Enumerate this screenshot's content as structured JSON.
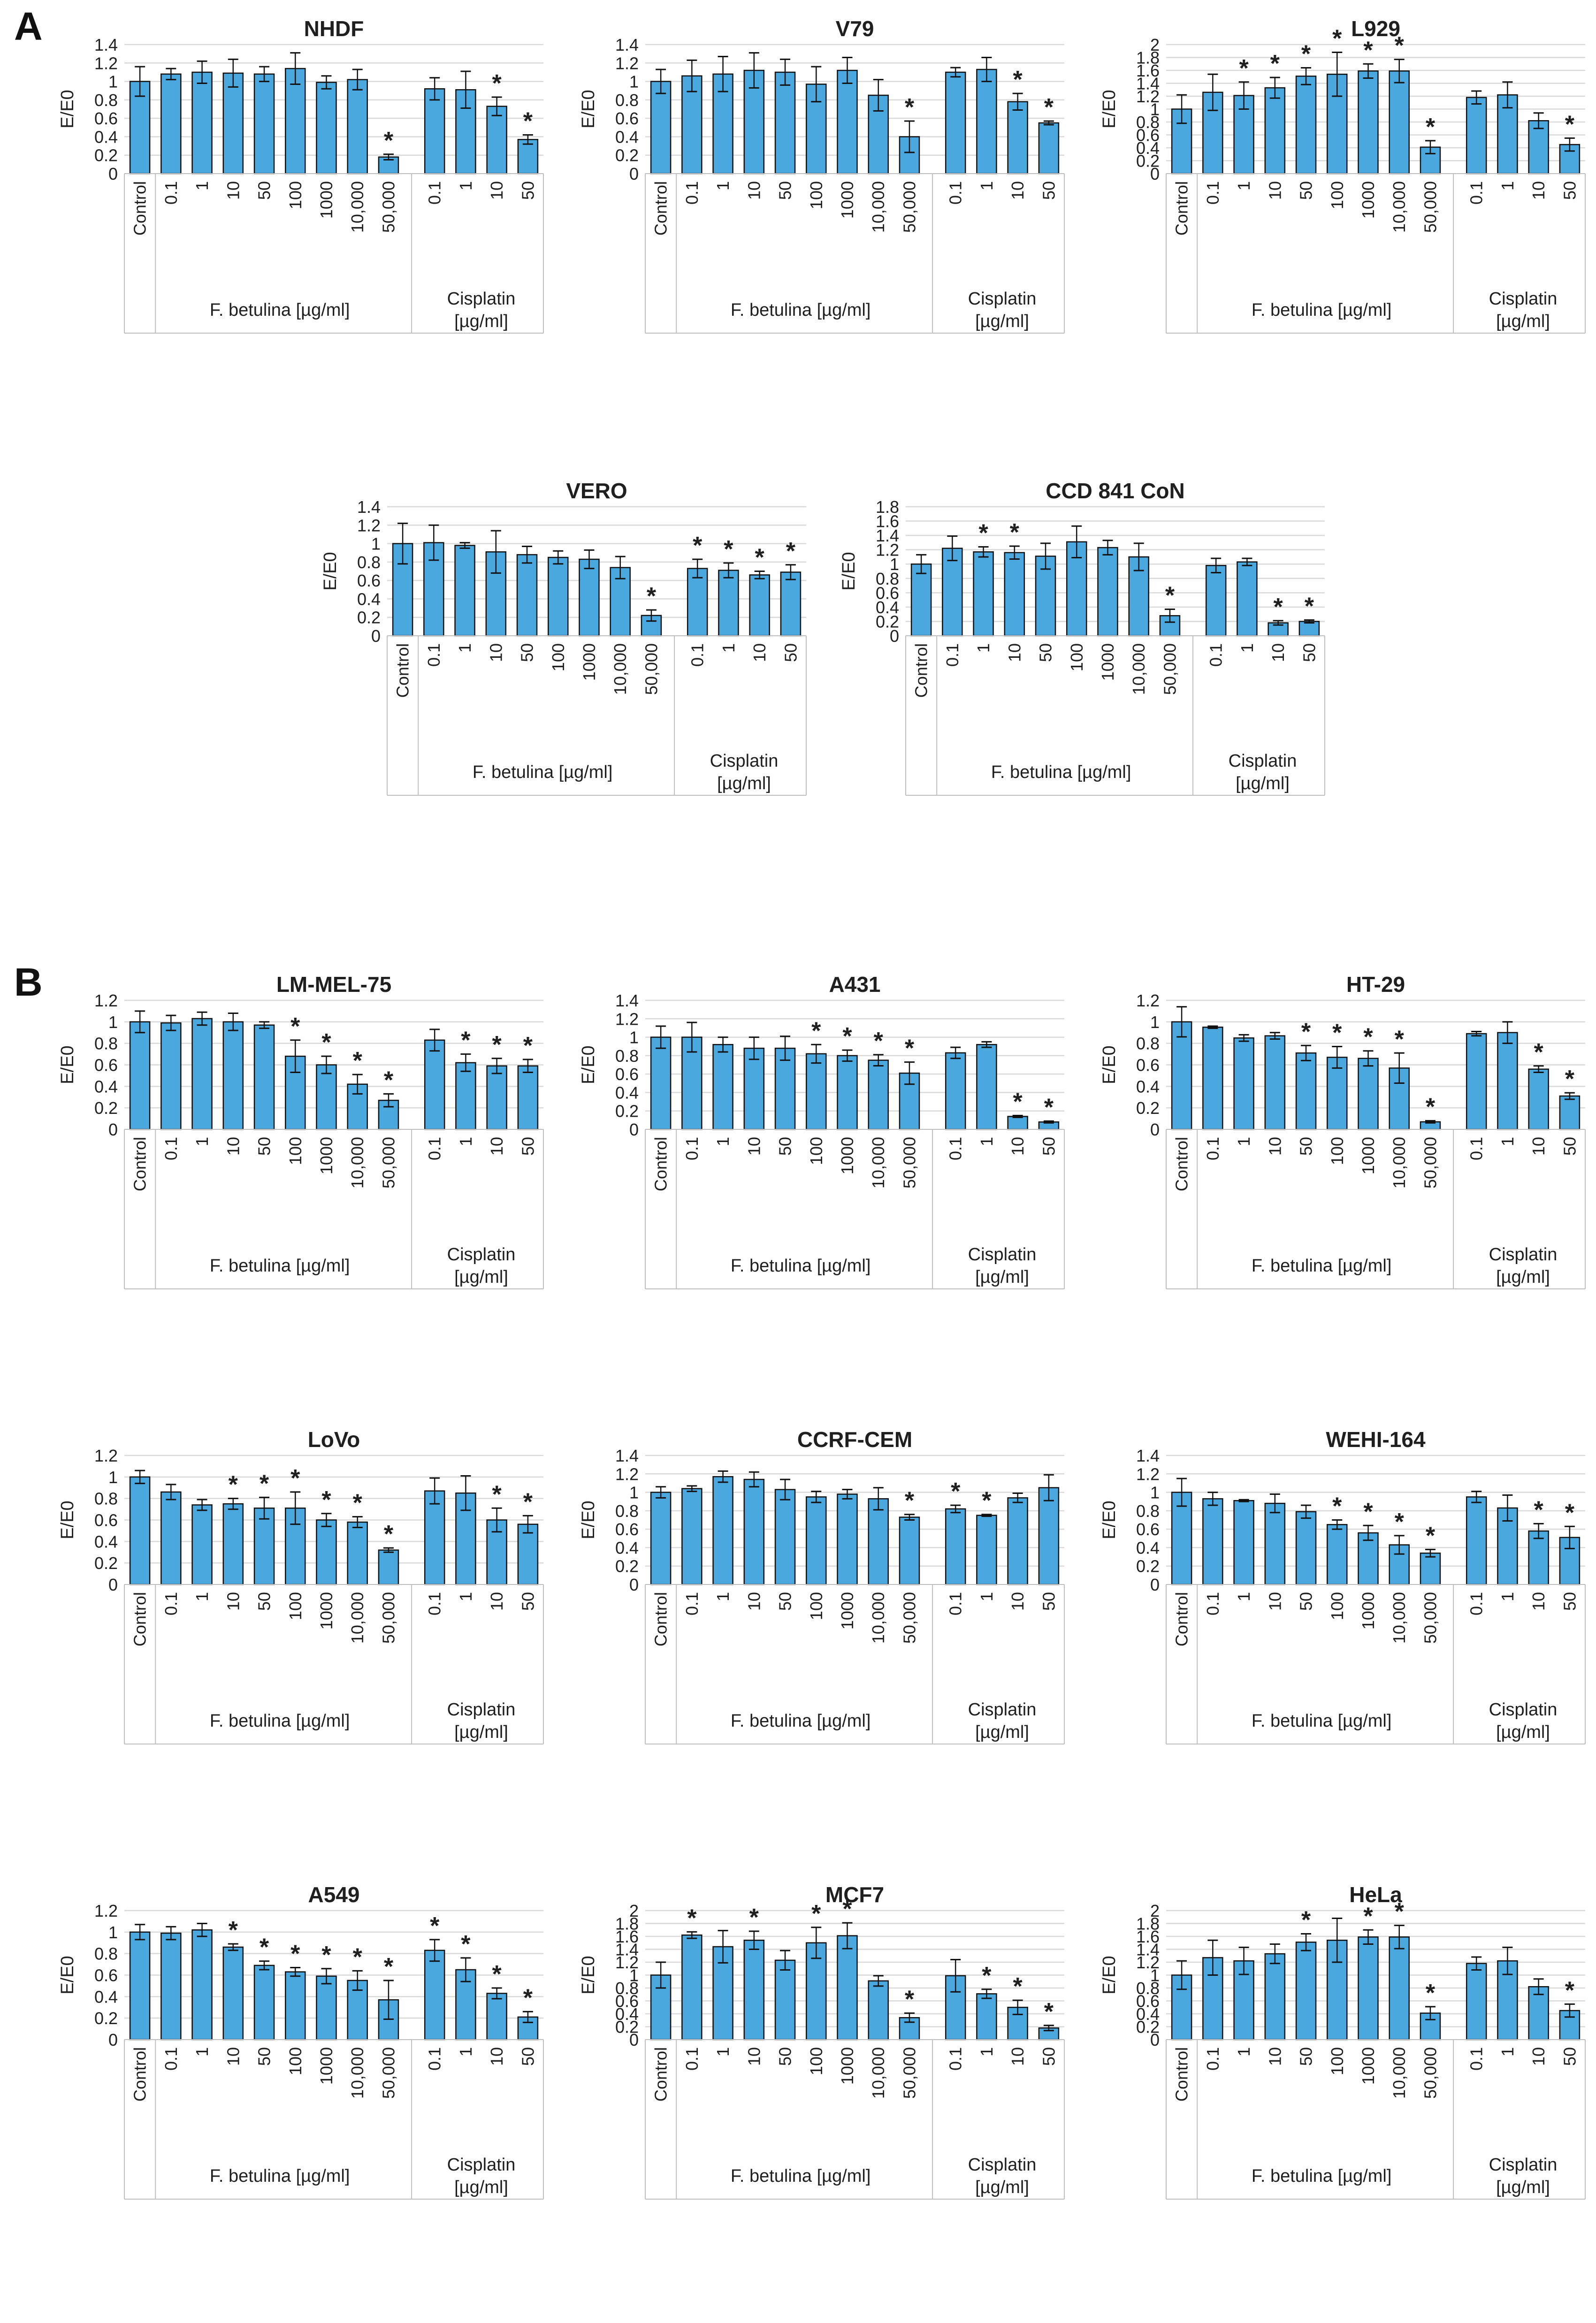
{
  "figure": {
    "panel_a": "A",
    "panel_b": "B",
    "ylabel": "E/E0",
    "categories": [
      "Control",
      "0.1",
      "1",
      "10",
      "50",
      "100",
      "1000",
      "10,000",
      "50,000",
      "0.1",
      "1",
      "10",
      "50"
    ],
    "group1_label": "F. betulina [µg/ml]",
    "group2_lines": [
      "Cisplatin",
      "[µg/ml]"
    ],
    "significance_marker": "*",
    "colors": {
      "bar_fill": "#4BA8DF",
      "bar_stroke": "#111111",
      "grid": "#D9D9D9",
      "box": "#BFBFBF",
      "text": "#1F1F1F"
    }
  },
  "chart_data": [
    {
      "type": "bar",
      "panel": "A",
      "title": "NHDF",
      "ylim": [
        0,
        1.4
      ],
      "ystep": 0.2,
      "values": [
        1.0,
        1.08,
        1.1,
        1.09,
        1.08,
        1.14,
        0.99,
        1.02,
        0.18,
        0.92,
        0.91,
        0.73,
        0.37
      ],
      "errors": [
        0.16,
        0.06,
        0.12,
        0.15,
        0.08,
        0.17,
        0.07,
        0.11,
        0.03,
        0.12,
        0.2,
        0.1,
        0.05
      ],
      "sig": [
        0,
        0,
        0,
        0,
        0,
        0,
        0,
        0,
        1,
        0,
        0,
        1,
        1
      ]
    },
    {
      "type": "bar",
      "panel": "A",
      "title": "V79",
      "ylim": [
        0,
        1.4
      ],
      "ystep": 0.2,
      "values": [
        1.0,
        1.06,
        1.08,
        1.12,
        1.1,
        0.97,
        1.12,
        0.85,
        0.4,
        1.1,
        1.13,
        0.78,
        0.55
      ],
      "errors": [
        0.13,
        0.17,
        0.19,
        0.19,
        0.14,
        0.19,
        0.14,
        0.17,
        0.17,
        0.05,
        0.13,
        0.09,
        0.02
      ],
      "sig": [
        0,
        0,
        0,
        0,
        0,
        0,
        0,
        0,
        1,
        0,
        0,
        1,
        1
      ]
    },
    {
      "type": "bar",
      "panel": "A",
      "title": "L929",
      "ylim": [
        0,
        2
      ],
      "ystep": 0.2,
      "values": [
        1.0,
        1.26,
        1.21,
        1.33,
        1.51,
        1.54,
        1.59,
        1.59,
        0.41,
        1.18,
        1.22,
        0.82,
        0.45
      ],
      "errors": [
        0.22,
        0.28,
        0.21,
        0.16,
        0.13,
        0.34,
        0.11,
        0.18,
        0.1,
        0.1,
        0.2,
        0.12,
        0.1
      ],
      "sig": [
        0,
        0,
        1,
        1,
        1,
        1,
        1,
        1,
        1,
        0,
        0,
        0,
        1
      ]
    },
    {
      "type": "bar",
      "panel": "A",
      "title": "VERO",
      "ylim": [
        0,
        1.4
      ],
      "ystep": 0.2,
      "values": [
        1.0,
        1.01,
        0.98,
        0.91,
        0.88,
        0.85,
        0.83,
        0.74,
        0.22,
        0.73,
        0.71,
        0.66,
        0.69
      ],
      "errors": [
        0.22,
        0.19,
        0.03,
        0.23,
        0.09,
        0.07,
        0.1,
        0.12,
        0.06,
        0.1,
        0.08,
        0.04,
        0.08
      ],
      "sig": [
        0,
        0,
        0,
        0,
        0,
        0,
        0,
        0,
        1,
        1,
        1,
        1,
        1
      ]
    },
    {
      "type": "bar",
      "panel": "A",
      "title": "CCD 841 CoN",
      "ylim": [
        0,
        1.8
      ],
      "ystep": 0.2,
      "values": [
        1.0,
        1.22,
        1.17,
        1.16,
        1.11,
        1.31,
        1.23,
        1.1,
        0.28,
        0.98,
        1.03,
        0.18,
        0.2
      ],
      "errors": [
        0.13,
        0.17,
        0.07,
        0.09,
        0.18,
        0.22,
        0.1,
        0.19,
        0.09,
        0.1,
        0.05,
        0.03,
        0.02
      ],
      "sig": [
        0,
        0,
        1,
        1,
        0,
        0,
        0,
        0,
        1,
        0,
        0,
        1,
        1
      ]
    },
    {
      "type": "bar",
      "panel": "B",
      "title": "LM-MEL-75",
      "ylim": [
        0,
        1.2
      ],
      "ystep": 0.2,
      "values": [
        1.0,
        0.99,
        1.03,
        1.0,
        0.97,
        0.68,
        0.6,
        0.42,
        0.27,
        0.83,
        0.62,
        0.59,
        0.59
      ],
      "errors": [
        0.1,
        0.07,
        0.06,
        0.08,
        0.03,
        0.15,
        0.08,
        0.09,
        0.06,
        0.1,
        0.08,
        0.07,
        0.06
      ],
      "sig": [
        0,
        0,
        0,
        0,
        0,
        1,
        1,
        1,
        1,
        0,
        1,
        1,
        1
      ]
    },
    {
      "type": "bar",
      "panel": "B",
      "title": "A431",
      "ylim": [
        0,
        1.4
      ],
      "ystep": 0.2,
      "values": [
        1.0,
        1.0,
        0.92,
        0.88,
        0.88,
        0.82,
        0.8,
        0.75,
        0.61,
        0.83,
        0.92,
        0.14,
        0.08
      ],
      "errors": [
        0.12,
        0.16,
        0.08,
        0.12,
        0.13,
        0.1,
        0.06,
        0.06,
        0.12,
        0.06,
        0.03,
        0.01,
        0.01
      ],
      "sig": [
        0,
        0,
        0,
        0,
        0,
        1,
        1,
        1,
        1,
        0,
        0,
        1,
        1
      ]
    },
    {
      "type": "bar",
      "panel": "B",
      "title": "HT-29",
      "ylim": [
        0,
        1.2
      ],
      "ystep": 0.2,
      "values": [
        1.0,
        0.95,
        0.85,
        0.87,
        0.71,
        0.67,
        0.66,
        0.57,
        0.07,
        0.89,
        0.9,
        0.56,
        0.31
      ],
      "errors": [
        0.14,
        0.01,
        0.03,
        0.03,
        0.07,
        0.1,
        0.07,
        0.14,
        0.01,
        0.02,
        0.1,
        0.03,
        0.03
      ],
      "sig": [
        0,
        0,
        0,
        0,
        1,
        1,
        1,
        1,
        1,
        0,
        0,
        1,
        1
      ]
    },
    {
      "type": "bar",
      "panel": "B",
      "title": "LoVo",
      "ylim": [
        0,
        1.2
      ],
      "ystep": 0.2,
      "values": [
        1.0,
        0.86,
        0.74,
        0.75,
        0.71,
        0.71,
        0.6,
        0.58,
        0.32,
        0.87,
        0.85,
        0.6,
        0.56
      ],
      "errors": [
        0.06,
        0.07,
        0.05,
        0.05,
        0.1,
        0.15,
        0.06,
        0.05,
        0.02,
        0.12,
        0.16,
        0.11,
        0.08
      ],
      "sig": [
        0,
        0,
        0,
        1,
        1,
        1,
        1,
        1,
        1,
        0,
        0,
        1,
        1
      ]
    },
    {
      "type": "bar",
      "panel": "B",
      "title": "CCRF-CEM",
      "ylim": [
        0,
        1.4
      ],
      "ystep": 0.2,
      "values": [
        1.0,
        1.04,
        1.17,
        1.14,
        1.03,
        0.95,
        0.98,
        0.93,
        0.73,
        0.82,
        0.75,
        0.94,
        1.05
      ],
      "errors": [
        0.06,
        0.03,
        0.06,
        0.08,
        0.11,
        0.06,
        0.05,
        0.12,
        0.03,
        0.04,
        0.01,
        0.05,
        0.14
      ],
      "sig": [
        0,
        0,
        0,
        0,
        0,
        0,
        0,
        0,
        1,
        1,
        1,
        0,
        0
      ]
    },
    {
      "type": "bar",
      "panel": "B",
      "title": "WEHI-164",
      "ylim": [
        0,
        1.4
      ],
      "ystep": 0.2,
      "values": [
        1.0,
        0.93,
        0.91,
        0.88,
        0.79,
        0.65,
        0.56,
        0.43,
        0.34,
        0.95,
        0.83,
        0.58,
        0.51
      ],
      "errors": [
        0.15,
        0.07,
        0.01,
        0.1,
        0.07,
        0.05,
        0.08,
        0.1,
        0.04,
        0.06,
        0.14,
        0.08,
        0.12
      ],
      "sig": [
        0,
        0,
        0,
        0,
        0,
        1,
        1,
        1,
        1,
        0,
        0,
        1,
        1
      ]
    },
    {
      "type": "bar",
      "panel": "B",
      "title": "A549",
      "ylim": [
        0,
        1.2
      ],
      "ystep": 0.2,
      "values": [
        1.0,
        0.99,
        1.02,
        0.86,
        0.69,
        0.63,
        0.59,
        0.55,
        0.37,
        0.83,
        0.65,
        0.43,
        0.21
      ],
      "errors": [
        0.07,
        0.06,
        0.06,
        0.03,
        0.04,
        0.04,
        0.07,
        0.09,
        0.18,
        0.1,
        0.11,
        0.05,
        0.05
      ],
      "sig": [
        0,
        0,
        0,
        1,
        1,
        1,
        1,
        1,
        1,
        1,
        1,
        1,
        1
      ]
    },
    {
      "type": "bar",
      "panel": "B",
      "title": "MCF7",
      "ylim": [
        0,
        2
      ],
      "ystep": 0.2,
      "values": [
        1.0,
        1.62,
        1.44,
        1.54,
        1.23,
        1.5,
        1.61,
        0.91,
        0.34,
        0.99,
        0.71,
        0.5,
        0.18
      ],
      "errors": [
        0.2,
        0.05,
        0.25,
        0.14,
        0.15,
        0.24,
        0.2,
        0.08,
        0.07,
        0.25,
        0.07,
        0.11,
        0.04
      ],
      "sig": [
        0,
        1,
        0,
        1,
        0,
        1,
        1,
        0,
        1,
        0,
        1,
        1,
        1
      ]
    },
    {
      "type": "bar",
      "panel": "B",
      "title": "HeLa",
      "ylim": [
        0,
        2
      ],
      "ystep": 0.2,
      "values": [
        1.0,
        1.27,
        1.22,
        1.33,
        1.51,
        1.54,
        1.59,
        1.59,
        0.41,
        1.18,
        1.22,
        0.82,
        0.45
      ],
      "errors": [
        0.22,
        0.27,
        0.21,
        0.15,
        0.13,
        0.34,
        0.11,
        0.18,
        0.1,
        0.1,
        0.21,
        0.12,
        0.1
      ],
      "sig": [
        0,
        0,
        0,
        0,
        1,
        0,
        1,
        1,
        1,
        0,
        0,
        0,
        1
      ]
    }
  ]
}
